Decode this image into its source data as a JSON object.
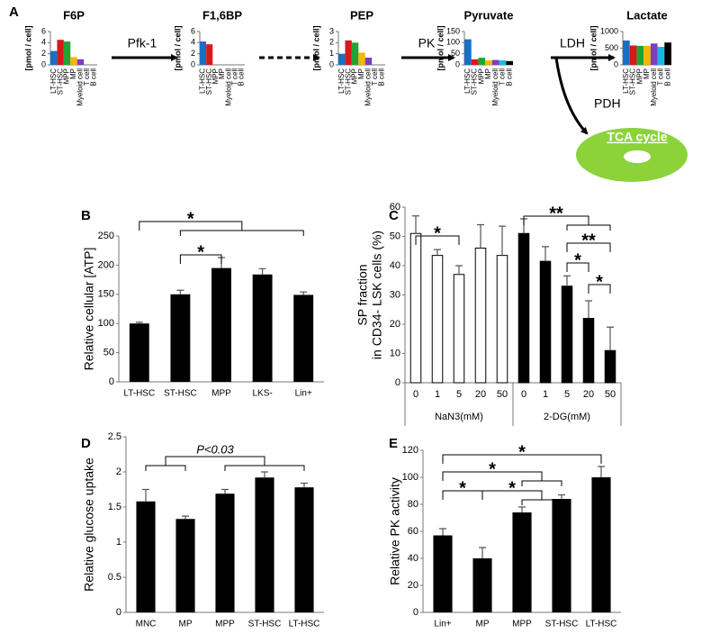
{
  "pathway": {
    "enzymes": [
      "Pfk-1",
      "PK",
      "LDH",
      "PDH"
    ],
    "product": "TCA cycle"
  },
  "chart_data": [
    {
      "type": "bar",
      "panel": "A",
      "title": "F6P",
      "ylabel": "[pmol / cell]",
      "categories": [
        "LT-HSC",
        "ST-HSC",
        "MPP",
        "MP",
        "Myeloid cell",
        "T cell",
        "B cell"
      ],
      "colors": [
        "#1a6fc4",
        "#d7191c",
        "#21a336",
        "#f5b800",
        "#7b3fbf",
        "#19b7e6",
        "#000000"
      ],
      "values": [
        2.5,
        4.5,
        4.2,
        1.4,
        1.0,
        0,
        0
      ],
      "ylim": [
        0,
        6
      ],
      "yticks": [
        0,
        2,
        4,
        6
      ]
    },
    {
      "type": "bar",
      "title": "F1,6BP",
      "ylabel": "[pmol / cell]",
      "categories": [
        "LT-HSC",
        "ST-HSC",
        "MPP",
        "MP",
        "Myeloid cell",
        "T cell",
        "B cell"
      ],
      "colors": [
        "#1a6fc4",
        "#d7191c",
        "#21a336",
        "#f5b800",
        "#7b3fbf",
        "#19b7e6",
        "#000000"
      ],
      "values": [
        4.2,
        3.7,
        0,
        0,
        0,
        0,
        0
      ],
      "ylim": [
        0,
        6
      ],
      "yticks": [
        0,
        2,
        4,
        6
      ]
    },
    {
      "type": "bar",
      "title": "PEP",
      "ylabel": "[pmol / cell]",
      "categories": [
        "LT-HSC",
        "ST-HSC",
        "MPP",
        "MP",
        "Myeloid cell",
        "T cell",
        "B cell"
      ],
      "colors": [
        "#1a6fc4",
        "#d7191c",
        "#21a336",
        "#f5b800",
        "#7b3fbf",
        "#19b7e6",
        "#000000"
      ],
      "values": [
        1.0,
        2.2,
        2.0,
        1.1,
        0.65,
        0,
        0
      ],
      "ylim": [
        0,
        3
      ],
      "yticks": [
        0,
        1,
        2,
        3
      ]
    },
    {
      "type": "bar",
      "title": "Pyruvate",
      "ylabel": "[pmol / cell]",
      "categories": [
        "LT-HSC",
        "ST-HSC",
        "MPP",
        "MP",
        "Myeloid cell",
        "T cell",
        "B cell"
      ],
      "colors": [
        "#1a6fc4",
        "#d7191c",
        "#21a336",
        "#f5b800",
        "#7b3fbf",
        "#19b7e6",
        "#000000"
      ],
      "values": [
        115,
        25,
        32,
        20,
        22,
        20,
        17
      ],
      "ylim": [
        0,
        150
      ],
      "yticks": [
        0,
        50,
        100,
        150
      ]
    },
    {
      "type": "bar",
      "title": "Lactate",
      "ylabel": "[pmol / cell]",
      "categories": [
        "LT-HSC",
        "ST-HSC",
        "MPP",
        "MP",
        "Myeloid cell",
        "T cell",
        "B cell"
      ],
      "colors": [
        "#1a6fc4",
        "#d7191c",
        "#21a336",
        "#f5b800",
        "#7b3fbf",
        "#19b7e6",
        "#000000"
      ],
      "values": [
        730,
        580,
        570,
        570,
        640,
        540,
        670
      ],
      "ylim": [
        0,
        1000
      ],
      "yticks": [
        0,
        500,
        1000
      ]
    },
    {
      "type": "bar",
      "panel": "B",
      "ylabel": "Relative cellular [ATP]",
      "categories": [
        "LT-HSC",
        "ST-HSC",
        "MPP",
        "LKS-",
        "Lin+"
      ],
      "values": [
        100,
        150,
        195,
        184,
        149
      ],
      "errors": [
        2,
        7,
        18,
        10,
        5
      ],
      "color": "#000000",
      "ylim": [
        0,
        250
      ],
      "yticks": [
        0,
        50,
        100,
        150,
        200,
        250
      ],
      "significance": [
        "*",
        "*"
      ]
    },
    {
      "type": "bar",
      "panel": "C",
      "ylabel": [
        "SP fraction",
        "in CD34- LSK cells  (%)"
      ],
      "categories": [
        "0",
        "1",
        "5",
        "20",
        "50",
        "0",
        "1",
        "5",
        "20",
        "50"
      ],
      "series": [
        {
          "name": "NaN3(mM)",
          "color": "#ffffff",
          "values": [
            51,
            43.5,
            37,
            46,
            43.5,
            null,
            null,
            null,
            null,
            null
          ],
          "errors": [
            6,
            2,
            3,
            8,
            10,
            null,
            null,
            null,
            null,
            null
          ]
        },
        {
          "name": "2-DG(mM)",
          "color": "#000000",
          "values": [
            null,
            null,
            null,
            null,
            null,
            51,
            41.5,
            33,
            22,
            11
          ],
          "errors": [
            null,
            null,
            null,
            null,
            null,
            5,
            5,
            3.5,
            6,
            8
          ]
        }
      ],
      "ylim": [
        0,
        60
      ],
      "yticks": [
        0,
        10,
        20,
        30,
        40,
        50,
        60
      ],
      "significance": [
        "*",
        "**",
        "**",
        "*",
        "*"
      ]
    },
    {
      "type": "bar",
      "panel": "D",
      "ylabel": "Relative glucose uptake",
      "categories": [
        "MNC",
        "MP",
        "MPP",
        "ST-HSC",
        "LT-HSC"
      ],
      "values": [
        1.58,
        1.33,
        1.69,
        1.92,
        1.78
      ],
      "errors": [
        0.17,
        0.04,
        0.06,
        0.08,
        0.06
      ],
      "color": "#000000",
      "ylim": [
        0,
        2.5
      ],
      "yticks": [
        0,
        0.5,
        1,
        1.5,
        2,
        2.5
      ],
      "significance": [
        "P<0.03"
      ]
    },
    {
      "type": "bar",
      "panel": "E",
      "ylabel": "Relative PK activity",
      "categories": [
        "Lin+",
        "MP",
        "MPP",
        "ST-HSC",
        "LT-HSC"
      ],
      "values": [
        57,
        40,
        74,
        84,
        100
      ],
      "errors": [
        5,
        8,
        4,
        3,
        8
      ],
      "color": "#000000",
      "ylim": [
        0,
        120
      ],
      "yticks": [
        0,
        20,
        40,
        60,
        80,
        100,
        120
      ],
      "significance": [
        "*",
        "*",
        "*",
        "*"
      ]
    }
  ]
}
